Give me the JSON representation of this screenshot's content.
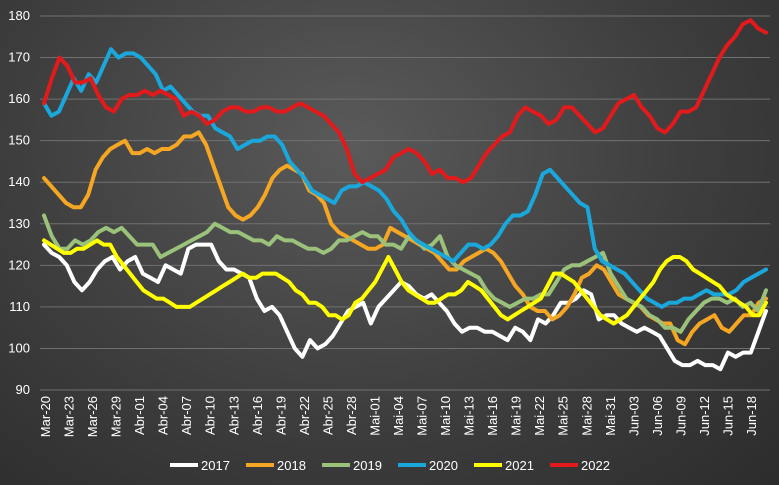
{
  "chart_data": {
    "type": "line",
    "title": "",
    "xlabel": "",
    "ylabel": "",
    "ylim": [
      90,
      180
    ],
    "yticks": [
      90,
      100,
      110,
      120,
      130,
      140,
      150,
      160,
      170,
      180
    ],
    "grid": "horizontal",
    "legend_position": "bottom",
    "x_tick_labels": [
      "Mar-20",
      "Mar-23",
      "Mar-26",
      "Mar-29",
      "Abr-01",
      "Abr-04",
      "Abr-07",
      "Abr-10",
      "Abr-13",
      "Abr-16",
      "Abr-19",
      "Abr-22",
      "Abr-25",
      "Abr-28",
      "Mai-01",
      "Mai-04",
      "Mai-07",
      "Mai-10",
      "Mai-13",
      "Mai-16",
      "Mai-19",
      "Mai-22",
      "Mai-25",
      "Mai-28",
      "Mai-31",
      "Jun-03",
      "Jun-06",
      "Jun-09",
      "Jun-12",
      "Jun-15",
      "Jun-18"
    ],
    "series": [
      {
        "name": "2017",
        "color": "#ffffff",
        "values": [
          125,
          123,
          122,
          120,
          116,
          114,
          116,
          119,
          121,
          122,
          119,
          121,
          122,
          118,
          117,
          116,
          120,
          119,
          118,
          124,
          125,
          125,
          125,
          121,
          119,
          119,
          118,
          117,
          112,
          109,
          110,
          108,
          104,
          100,
          98,
          102,
          100,
          101,
          103,
          106,
          109,
          110,
          111,
          106,
          110,
          112,
          114,
          116,
          115,
          113,
          112,
          113,
          111,
          109,
          106,
          104,
          105,
          105,
          104,
          104,
          103,
          102,
          105,
          104,
          102,
          107,
          106,
          108,
          111,
          111,
          112,
          114,
          113,
          107,
          108,
          108,
          106,
          105,
          104,
          105,
          104,
          103,
          100,
          97,
          96,
          96,
          97,
          96,
          96,
          95,
          99,
          98,
          99,
          99,
          104,
          109
        ]
      },
      {
        "name": "2018",
        "color": "#f5a623",
        "values": [
          141,
          139,
          137,
          135,
          134,
          134,
          137,
          143,
          146,
          148,
          149,
          150,
          147,
          147,
          148,
          147,
          148,
          148,
          149,
          151,
          151,
          152,
          149,
          144,
          139,
          134,
          132,
          131,
          132,
          134,
          137,
          141,
          143,
          144,
          143,
          142,
          138,
          137,
          135,
          130,
          128,
          127,
          126,
          125,
          124,
          124,
          125,
          129,
          128,
          127,
          126,
          125,
          124,
          123,
          121,
          119,
          119,
          121,
          122,
          123,
          124,
          123,
          121,
          118,
          115,
          113,
          110,
          109,
          109,
          107,
          108,
          110,
          113,
          117,
          118,
          120,
          119,
          116,
          113,
          112,
          111,
          110,
          108,
          107,
          106,
          106,
          102,
          101,
          104,
          106,
          107,
          108,
          105,
          104,
          106,
          108,
          108,
          111,
          112
        ]
      },
      {
        "name": "2019",
        "color": "#9bc27a",
        "values": [
          132,
          127,
          124,
          124,
          126,
          125,
          126,
          128,
          129,
          128,
          129,
          127,
          125,
          125,
          125,
          122,
          123,
          124,
          125,
          126,
          127,
          128,
          130,
          129,
          128,
          128,
          127,
          126,
          126,
          125,
          127,
          126,
          126,
          125,
          124,
          124,
          123,
          124,
          126,
          126,
          127,
          128,
          127,
          127,
          125,
          125,
          124,
          127,
          126,
          124,
          125,
          127,
          122,
          120,
          119,
          118,
          117,
          114,
          112,
          111,
          110,
          111,
          112,
          112,
          113,
          113,
          116,
          119,
          120,
          120,
          121,
          122,
          123,
          118,
          115,
          112,
          111,
          110,
          108,
          107,
          105,
          105,
          104,
          107,
          109,
          111,
          112,
          112,
          111,
          112,
          110,
          111,
          109,
          114
        ]
      },
      {
        "name": "2020",
        "color": "#1aa7dc",
        "values": [
          159,
          156,
          157,
          161,
          165,
          162,
          166,
          164,
          168,
          172,
          170,
          171,
          171,
          170,
          168,
          166,
          162,
          163,
          161,
          159,
          157,
          156,
          156,
          153,
          152,
          151,
          148,
          149,
          150,
          150,
          151,
          151,
          149,
          145,
          143,
          141,
          138,
          137,
          136,
          135,
          138,
          139,
          139,
          140,
          139,
          138,
          136,
          133,
          131,
          128,
          126,
          125,
          124,
          123,
          122,
          121,
          123,
          125,
          125,
          124,
          125,
          127,
          130,
          132,
          132,
          133,
          137,
          142,
          143,
          141,
          139,
          137,
          135,
          134,
          124,
          121,
          120,
          119,
          118,
          116,
          114,
          112,
          111,
          110,
          111,
          111,
          112,
          112,
          113,
          114,
          113,
          113,
          113,
          114,
          116,
          117,
          118,
          119
        ]
      },
      {
        "name": "2021",
        "color": "#ffff00",
        "values": [
          126,
          125,
          124,
          123,
          123,
          124,
          124,
          125,
          126,
          125,
          125,
          122,
          120,
          118,
          116,
          114,
          113,
          112,
          112,
          111,
          110,
          110,
          110,
          111,
          112,
          113,
          114,
          115,
          116,
          117,
          118,
          117,
          117,
          118,
          118,
          118,
          117,
          116,
          114,
          113,
          111,
          111,
          110,
          108,
          108,
          107,
          108,
          111,
          112,
          114,
          116,
          119,
          122,
          119,
          116,
          114,
          113,
          112,
          111,
          111,
          112,
          113,
          113,
          114,
          116,
          115,
          114,
          112,
          110,
          108,
          107,
          108,
          109,
          110,
          111,
          112,
          115,
          118,
          118,
          117,
          116,
          114,
          112,
          110,
          108,
          107,
          106,
          107,
          108,
          110,
          112,
          114,
          116,
          119,
          121,
          122,
          122,
          121,
          119,
          118,
          117,
          116,
          115,
          113,
          112,
          111,
          110,
          108,
          108,
          111
        ]
      },
      {
        "name": "2022",
        "color": "#e31a1c",
        "values": [
          159,
          165,
          170,
          168,
          164,
          164,
          165,
          161,
          158,
          157,
          160,
          161,
          161,
          162,
          161,
          162,
          161,
          160,
          156,
          157,
          156,
          154,
          155,
          157,
          158,
          158,
          157,
          157,
          158,
          158,
          157,
          157,
          158,
          159,
          158,
          157,
          156,
          154,
          152,
          148,
          142,
          140,
          141,
          142,
          143,
          146,
          147,
          148,
          147,
          145,
          142,
          143,
          141,
          141,
          140,
          141,
          144,
          147,
          149,
          151,
          152,
          156,
          158,
          157,
          156,
          154,
          155,
          158,
          158,
          156,
          154,
          152,
          153,
          156,
          159,
          160,
          161,
          158,
          156,
          153,
          152,
          154,
          157,
          157,
          158,
          162,
          166,
          170,
          173,
          175,
          178,
          179,
          177,
          176
        ]
      }
    ]
  }
}
